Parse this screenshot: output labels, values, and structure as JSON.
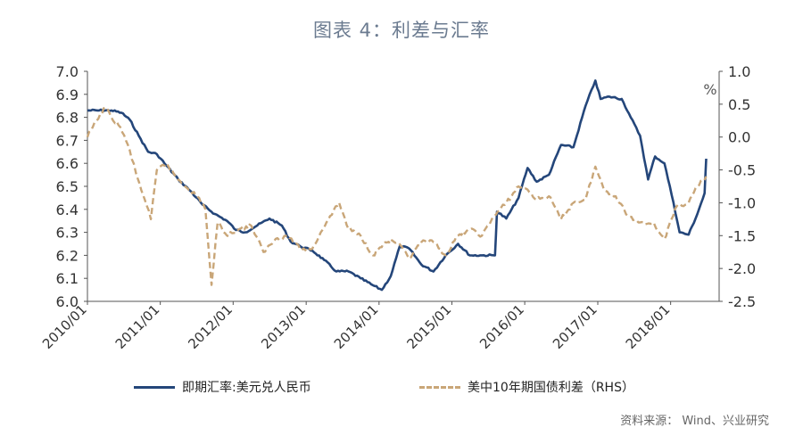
{
  "title": "图表 4：利差与汇率",
  "source": "资料来源：   Wind、兴业研究",
  "unit_right": "%",
  "colors": {
    "usdcny": "#24467a",
    "spread": "#c9a678",
    "axis": "#555555"
  },
  "chart_data": {
    "type": "line",
    "x_tick_labels": [
      "2010/01",
      "2011/01",
      "2012/01",
      "2013/01",
      "2014/01",
      "2015/01",
      "2016/01",
      "2017/01",
      "2018/01"
    ],
    "y_left": {
      "lim": [
        6.0,
        7.0
      ],
      "ticks": [
        "6.0",
        "6.1",
        "6.2",
        "6.3",
        "6.4",
        "6.5",
        "6.6",
        "6.7",
        "6.8",
        "6.9",
        "7.0"
      ]
    },
    "y_right": {
      "lim": [
        -2.5,
        1.0
      ],
      "ticks": [
        "1.0",
        "0.5",
        "0.0",
        "-0.5",
        "-1.0",
        "-1.5",
        "-2.0",
        "-2.5"
      ],
      "unit": "%"
    },
    "grid": false,
    "legend": "bottom",
    "series": [
      {
        "name": "即期汇率:美元兑人民币",
        "axis": "left",
        "style": "solid",
        "points": [
          [
            "2010-01-01",
            6.83
          ],
          [
            "2010-03-01",
            6.83
          ],
          [
            "2010-05-01",
            6.83
          ],
          [
            "2010-06-20",
            6.82
          ],
          [
            "2010-08-01",
            6.79
          ],
          [
            "2010-09-15",
            6.72
          ],
          [
            "2010-11-01",
            6.65
          ],
          [
            "2010-12-15",
            6.64
          ],
          [
            "2011-02-01",
            6.59
          ],
          [
            "2011-04-01",
            6.53
          ],
          [
            "2011-06-01",
            6.48
          ],
          [
            "2011-08-01",
            6.42
          ],
          [
            "2011-10-01",
            6.38
          ],
          [
            "2011-12-01",
            6.35
          ],
          [
            "2012-01-15",
            6.31
          ],
          [
            "2012-03-01",
            6.3
          ],
          [
            "2012-05-01",
            6.33
          ],
          [
            "2012-07-01",
            6.36
          ],
          [
            "2012-09-01",
            6.33
          ],
          [
            "2012-10-15",
            6.26
          ],
          [
            "2012-12-01",
            6.24
          ],
          [
            "2013-02-01",
            6.22
          ],
          [
            "2013-04-01",
            6.18
          ],
          [
            "2013-06-01",
            6.13
          ],
          [
            "2013-08-01",
            6.13
          ],
          [
            "2013-10-01",
            6.1
          ],
          [
            "2013-12-01",
            6.07
          ],
          [
            "2014-01-15",
            6.05
          ],
          [
            "2014-03-01",
            6.11
          ],
          [
            "2014-04-15",
            6.24
          ],
          [
            "2014-06-01",
            6.23
          ],
          [
            "2014-08-01",
            6.16
          ],
          [
            "2014-10-01",
            6.13
          ],
          [
            "2014-12-01",
            6.2
          ],
          [
            "2015-02-01",
            6.25
          ],
          [
            "2015-04-01",
            6.2
          ],
          [
            "2015-06-01",
            6.2
          ],
          [
            "2015-08-05",
            6.2
          ],
          [
            "2015-08-15",
            6.39
          ],
          [
            "2015-10-01",
            6.36
          ],
          [
            "2015-12-01",
            6.45
          ],
          [
            "2016-01-15",
            6.58
          ],
          [
            "2016-03-01",
            6.52
          ],
          [
            "2016-05-01",
            6.55
          ],
          [
            "2016-07-01",
            6.68
          ],
          [
            "2016-09-01",
            6.67
          ],
          [
            "2016-11-01",
            6.85
          ],
          [
            "2016-12-20",
            6.96
          ],
          [
            "2017-01-15",
            6.88
          ],
          [
            "2017-03-01",
            6.89
          ],
          [
            "2017-05-01",
            6.88
          ],
          [
            "2017-06-15",
            6.8
          ],
          [
            "2017-08-01",
            6.72
          ],
          [
            "2017-09-10",
            6.53
          ],
          [
            "2017-10-15",
            6.63
          ],
          [
            "2017-12-01",
            6.6
          ],
          [
            "2018-01-15",
            6.43
          ],
          [
            "2018-02-15",
            6.3
          ],
          [
            "2018-04-01",
            6.29
          ],
          [
            "2018-05-15",
            6.38
          ],
          [
            "2018-06-20",
            6.47
          ],
          [
            "2018-06-28",
            6.62
          ]
        ]
      },
      {
        "name": "美中10年期国债利差（RHS）",
        "axis": "right",
        "style": "dashed",
        "points": [
          [
            "2010-01-01",
            0.0
          ],
          [
            "2010-02-15",
            0.25
          ],
          [
            "2010-04-01",
            0.45
          ],
          [
            "2010-05-01",
            0.3
          ],
          [
            "2010-06-15",
            0.15
          ],
          [
            "2010-08-01",
            -0.2
          ],
          [
            "2010-09-01",
            -0.55
          ],
          [
            "2010-10-15",
            -0.95
          ],
          [
            "2010-11-15",
            -1.25
          ],
          [
            "2010-12-15",
            -0.5
          ],
          [
            "2011-02-01",
            -0.4
          ],
          [
            "2011-04-01",
            -0.65
          ],
          [
            "2011-06-01",
            -0.8
          ],
          [
            "2011-08-01",
            -1.0
          ],
          [
            "2011-08-15",
            -1.1
          ],
          [
            "2011-09-15",
            -2.25
          ],
          [
            "2011-10-15",
            -1.3
          ],
          [
            "2011-12-01",
            -1.5
          ],
          [
            "2012-02-01",
            -1.4
          ],
          [
            "2012-04-01",
            -1.35
          ],
          [
            "2012-06-01",
            -1.75
          ],
          [
            "2012-08-01",
            -1.55
          ],
          [
            "2012-10-01",
            -1.5
          ],
          [
            "2012-12-01",
            -1.7
          ],
          [
            "2013-02-01",
            -1.7
          ],
          [
            "2013-03-15",
            -1.45
          ],
          [
            "2013-05-01",
            -1.2
          ],
          [
            "2013-06-15",
            -1.0
          ],
          [
            "2013-08-01",
            -1.4
          ],
          [
            "2013-10-01",
            -1.5
          ],
          [
            "2013-12-01",
            -1.8
          ],
          [
            "2014-02-01",
            -1.6
          ],
          [
            "2014-04-01",
            -1.6
          ],
          [
            "2014-06-01",
            -1.85
          ],
          [
            "2014-08-01",
            -1.6
          ],
          [
            "2014-10-01",
            -1.6
          ],
          [
            "2014-12-01",
            -1.8
          ],
          [
            "2015-02-01",
            -1.5
          ],
          [
            "2015-04-01",
            -1.4
          ],
          [
            "2015-06-01",
            -1.5
          ],
          [
            "2015-08-01",
            -1.2
          ],
          [
            "2015-10-01",
            -1.0
          ],
          [
            "2015-12-01",
            -0.75
          ],
          [
            "2016-01-15",
            -0.8
          ],
          [
            "2016-03-01",
            -0.95
          ],
          [
            "2016-05-01",
            -0.9
          ],
          [
            "2016-07-01",
            -1.25
          ],
          [
            "2016-09-01",
            -1.0
          ],
          [
            "2016-11-01",
            -0.95
          ],
          [
            "2016-12-20",
            -0.45
          ],
          [
            "2017-02-01",
            -0.8
          ],
          [
            "2017-04-01",
            -0.9
          ],
          [
            "2017-06-01",
            -1.2
          ],
          [
            "2017-08-01",
            -1.3
          ],
          [
            "2017-10-01",
            -1.3
          ],
          [
            "2017-12-01",
            -1.55
          ],
          [
            "2018-02-01",
            -1.05
          ],
          [
            "2018-04-01",
            -1.0
          ],
          [
            "2018-05-15",
            -0.75
          ],
          [
            "2018-06-28",
            -0.6
          ]
        ]
      }
    ]
  }
}
